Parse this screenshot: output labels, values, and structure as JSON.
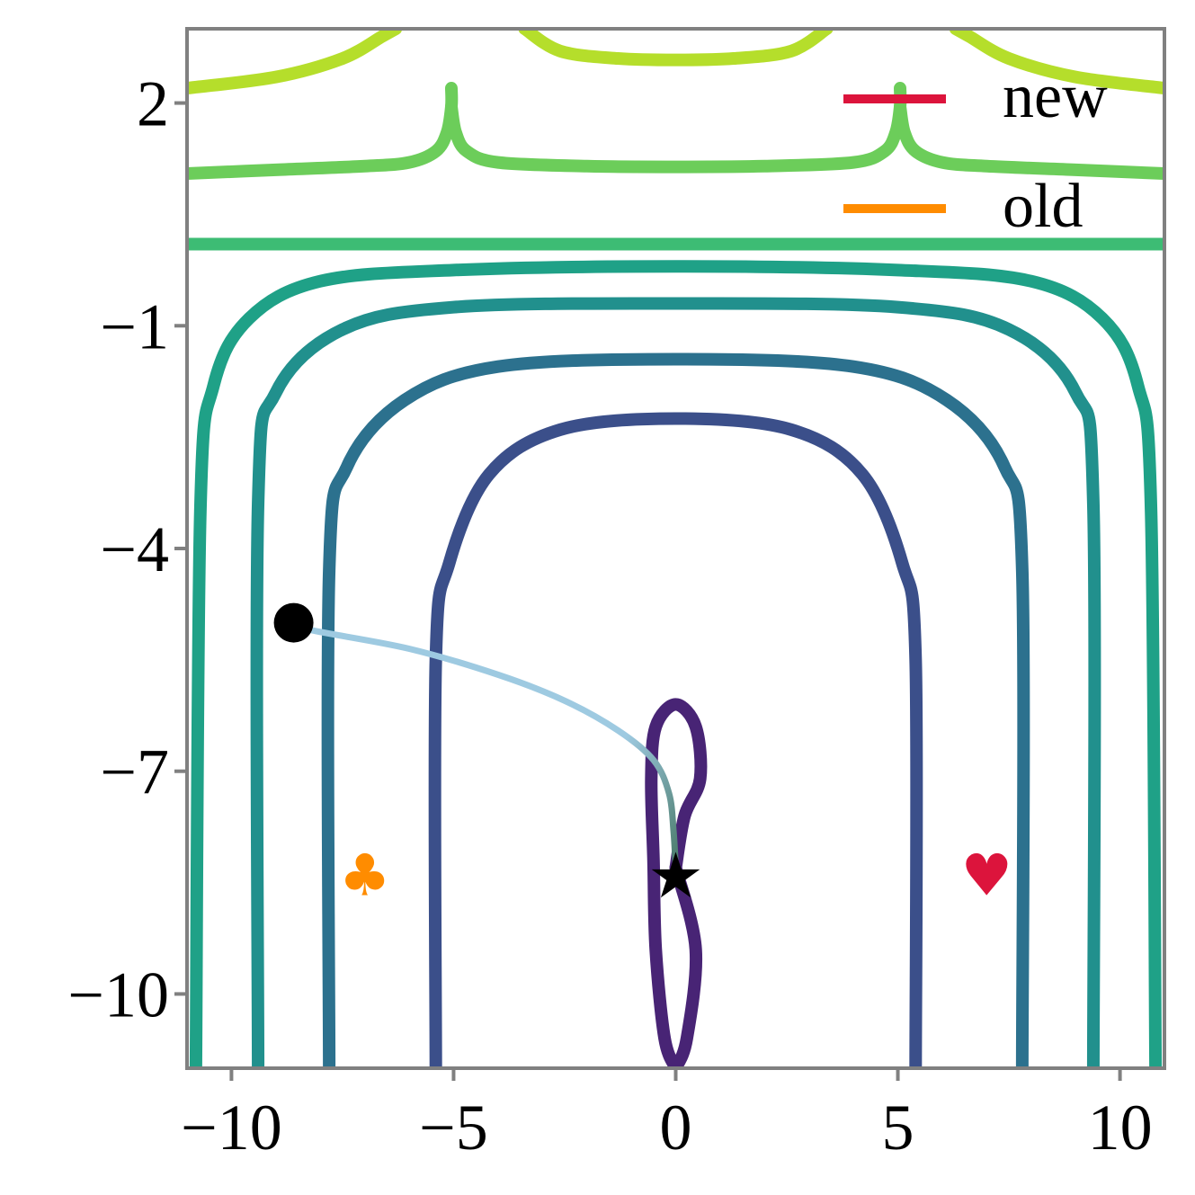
{
  "chart_data": {
    "type": "line",
    "title": "",
    "xlabel": "",
    "ylabel": "",
    "xlim": [
      -11,
      11
    ],
    "ylim": [
      -11,
      3
    ],
    "x_ticks": [
      -10,
      -5,
      0,
      5,
      10
    ],
    "x_tick_labels": [
      "−10",
      "−5",
      "0",
      "5",
      "10"
    ],
    "y_ticks": [
      2,
      -1,
      -4,
      -7,
      -10
    ],
    "y_tick_labels": [
      "2",
      "−1",
      "−4",
      "−7",
      "−10"
    ],
    "grid": false,
    "legend": {
      "placement": "top-right",
      "entries": [
        {
          "label": "new",
          "color": "#dc143c"
        },
        {
          "label": "old",
          "color": "#ff8c00"
        }
      ]
    },
    "contours": [
      {
        "level": 1,
        "color": "#482475",
        "points": [
          [
            0,
            -8.3
          ],
          [
            0.2,
            -7.6
          ],
          [
            0.55,
            -7.1
          ],
          [
            0.45,
            -6.4
          ],
          [
            0,
            -6.1
          ],
          [
            -0.45,
            -6.4
          ],
          [
            -0.55,
            -7.1
          ],
          [
            -0.5,
            -8.2
          ],
          [
            -0.45,
            -9.4
          ],
          [
            -0.25,
            -10.6
          ],
          [
            0,
            -11
          ]
        ]
      },
      {
        "level": 1,
        "color": "#482475",
        "points": [
          [
            0,
            -8.3
          ],
          [
            0.45,
            -9.4
          ],
          [
            0.25,
            -10.6
          ],
          [
            0,
            -11
          ]
        ]
      },
      {
        "level": 2,
        "color": "#3b4f8a",
        "points": [
          [
            -5.4,
            -11
          ],
          [
            -5.4,
            -5.5
          ],
          [
            -5.1,
            -4.2
          ],
          [
            -4.2,
            -3.0
          ],
          [
            -2.6,
            -2.4
          ],
          [
            0,
            -2.25
          ],
          [
            2.6,
            -2.4
          ],
          [
            4.2,
            -3.0
          ],
          [
            5.1,
            -4.2
          ],
          [
            5.4,
            -5.5
          ],
          [
            5.4,
            -11
          ]
        ]
      },
      {
        "level": 3,
        "color": "#2c718e",
        "points": [
          [
            -7.8,
            -11
          ],
          [
            -7.8,
            -4.3
          ],
          [
            -7.4,
            -2.9
          ],
          [
            -6.1,
            -2.0
          ],
          [
            -4.0,
            -1.55
          ],
          [
            0,
            -1.45
          ],
          [
            4.0,
            -1.55
          ],
          [
            6.1,
            -2.0
          ],
          [
            7.4,
            -2.9
          ],
          [
            7.8,
            -4.3
          ],
          [
            7.8,
            -11
          ]
        ]
      },
      {
        "level": 4,
        "color": "#21908d",
        "points": [
          [
            -9.4,
            -11
          ],
          [
            -9.4,
            -3.4
          ],
          [
            -9.0,
            -1.9
          ],
          [
            -7.5,
            -1.05
          ],
          [
            -5.0,
            -0.75
          ],
          [
            0,
            -0.7
          ],
          [
            5.0,
            -0.75
          ],
          [
            7.5,
            -1.05
          ],
          [
            9.0,
            -1.9
          ],
          [
            9.4,
            -3.4
          ],
          [
            9.4,
            -11
          ]
        ]
      },
      {
        "level": 4.5,
        "color": "#1fa187",
        "points": [
          [
            -10.8,
            -11
          ],
          [
            -10.7,
            -3.5
          ],
          [
            -10.4,
            -1.8
          ],
          [
            -9.6,
            -0.9
          ],
          [
            -8.0,
            -0.4
          ],
          [
            -5.0,
            -0.25
          ],
          [
            0,
            -0.2
          ],
          [
            5.0,
            -0.25
          ],
          [
            8.0,
            -0.4
          ],
          [
            9.6,
            -0.9
          ],
          [
            10.4,
            -1.8
          ],
          [
            10.7,
            -3.5
          ],
          [
            10.8,
            -11
          ]
        ]
      },
      {
        "level": 5,
        "color": "#3dbc74",
        "points": [
          [
            -11,
            0.1
          ],
          [
            11,
            0.1
          ]
        ]
      },
      {
        "level": 6,
        "color": "#6ccd5a",
        "points": [
          [
            -11,
            1.05
          ],
          [
            -9,
            1.1
          ],
          [
            -7,
            1.15
          ],
          [
            -6,
            1.2
          ],
          [
            -5.4,
            1.35
          ],
          [
            -5.15,
            1.6
          ],
          [
            -5.05,
            1.95
          ],
          [
            -5.05,
            2.2
          ]
        ]
      },
      {
        "level": 6,
        "color": "#6ccd5a",
        "points": [
          [
            -5.05,
            1.95
          ],
          [
            -4.95,
            1.6
          ],
          [
            -4.7,
            1.35
          ],
          [
            -4.0,
            1.2
          ],
          [
            -2,
            1.15
          ],
          [
            0,
            1.14
          ],
          [
            2,
            1.15
          ],
          [
            4.0,
            1.2
          ],
          [
            4.7,
            1.35
          ],
          [
            4.95,
            1.6
          ],
          [
            5.05,
            1.95
          ],
          [
            5.05,
            2.2
          ]
        ]
      },
      {
        "level": 6,
        "color": "#6ccd5a",
        "points": [
          [
            5.05,
            1.95
          ],
          [
            5.15,
            1.6
          ],
          [
            5.4,
            1.35
          ],
          [
            6,
            1.2
          ],
          [
            7,
            1.15
          ],
          [
            9,
            1.1
          ],
          [
            11,
            1.05
          ]
        ]
      },
      {
        "level": 7,
        "color": "#b5de2b",
        "points": [
          [
            -11,
            2.2
          ],
          [
            -9,
            2.35
          ],
          [
            -7.5,
            2.6
          ],
          [
            -6.6,
            2.9
          ],
          [
            -6.3,
            3
          ]
        ]
      },
      {
        "level": 7,
        "color": "#b5de2b",
        "points": [
          [
            -3.4,
            3
          ],
          [
            -2.6,
            2.7
          ],
          [
            -1.3,
            2.6
          ],
          [
            0,
            2.58
          ],
          [
            1.3,
            2.6
          ],
          [
            2.6,
            2.7
          ],
          [
            3.4,
            3
          ]
        ]
      },
      {
        "level": 7,
        "color": "#b5de2b",
        "points": [
          [
            6.3,
            3
          ],
          [
            6.6,
            2.9
          ],
          [
            7.5,
            2.6
          ],
          [
            9,
            2.35
          ],
          [
            11,
            2.2
          ]
        ]
      }
    ],
    "trajectory": {
      "start_color": "#9ecae1",
      "end_color": "#4a7a6a",
      "points": [
        [
          -8.6,
          -5.0
        ],
        [
          -8.2,
          -5.1
        ],
        [
          -6,
          -5.35
        ],
        [
          -4,
          -5.7
        ],
        [
          -2.5,
          -6.05
        ],
        [
          -1.3,
          -6.45
        ],
        [
          -0.5,
          -6.85
        ],
        [
          -0.15,
          -7.3
        ],
        [
          -0.05,
          -7.8
        ],
        [
          0,
          -8.3
        ]
      ]
    },
    "markers": [
      {
        "name": "start",
        "symbol": "●",
        "x": -8.6,
        "y": -5.0,
        "color": "#000000"
      },
      {
        "name": "minimum",
        "symbol": "★",
        "x": 0,
        "y": -8.4,
        "color": "#000000"
      },
      {
        "name": "club",
        "symbol": "♣",
        "x": -7,
        "y": -8.4,
        "color": "#ff8c00"
      },
      {
        "name": "heart",
        "symbol": "♥",
        "x": 7,
        "y": -8.4,
        "color": "#dc143c"
      }
    ]
  }
}
